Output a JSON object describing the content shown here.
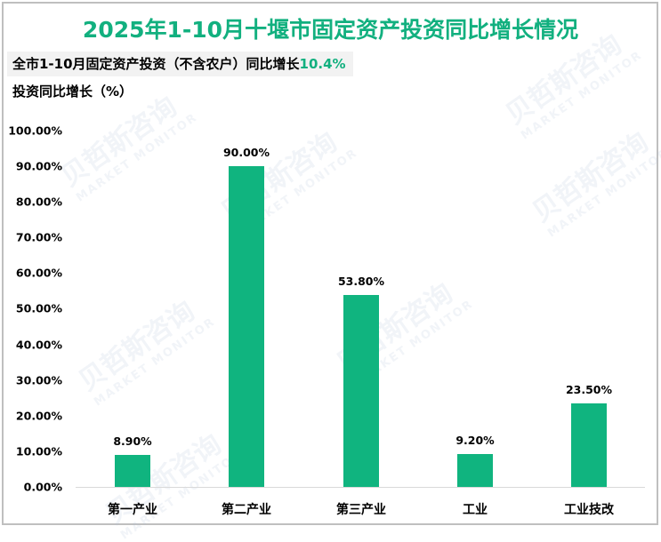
{
  "header": {
    "title": "2025年1-10月十堰市固定资产投资同比增长情况",
    "subtitle_prefix": "全市1-10月固定资产投资（不含农户）同比增长",
    "subtitle_highlight": "10.4%",
    "y_axis_title": "投资同比增长（%）"
  },
  "watermark": {
    "text_cn": "贝哲斯咨询",
    "text_en": "MARKET MONITOR"
  },
  "colors": {
    "title": "#12b07f",
    "bar": "#10b47f",
    "border": "#bfbfbf",
    "subtitle_bg": "#f2f2f2"
  },
  "y_ticks": [
    "100.00%",
    "90.00%",
    "80.00%",
    "70.00%",
    "60.00%",
    "50.00%",
    "40.00%",
    "30.00%",
    "20.00%",
    "10.00%",
    "0.00%"
  ],
  "bars": [
    {
      "category": "第一产业",
      "value": 8.9,
      "label": "8.90%"
    },
    {
      "category": "第二产业",
      "value": 90.0,
      "label": "90.00%"
    },
    {
      "category": "第三产业",
      "value": 53.8,
      "label": "53.80%"
    },
    {
      "category": "工业",
      "value": 9.2,
      "label": "9.20%"
    },
    {
      "category": "工业技改",
      "value": 23.5,
      "label": "23.50%"
    }
  ],
  "chart_data": {
    "type": "bar",
    "title": "2025年1-10月十堰市固定资产投资同比增长情况",
    "subtitle": "全市1-10月固定资产投资（不含农户）同比增长10.4%",
    "xlabel": "",
    "ylabel": "投资同比增长（%）",
    "categories": [
      "第一产业",
      "第二产业",
      "第三产业",
      "工业",
      "工业技改"
    ],
    "values": [
      8.9,
      90.0,
      53.8,
      9.2,
      23.5
    ],
    "data_labels": [
      "8.90%",
      "90.00%",
      "53.80%",
      "9.20%",
      "23.50%"
    ],
    "ylim": [
      0,
      100
    ],
    "y_tick_step": 10,
    "y_tick_format": "0.00%",
    "grid": false,
    "legend": "none"
  }
}
